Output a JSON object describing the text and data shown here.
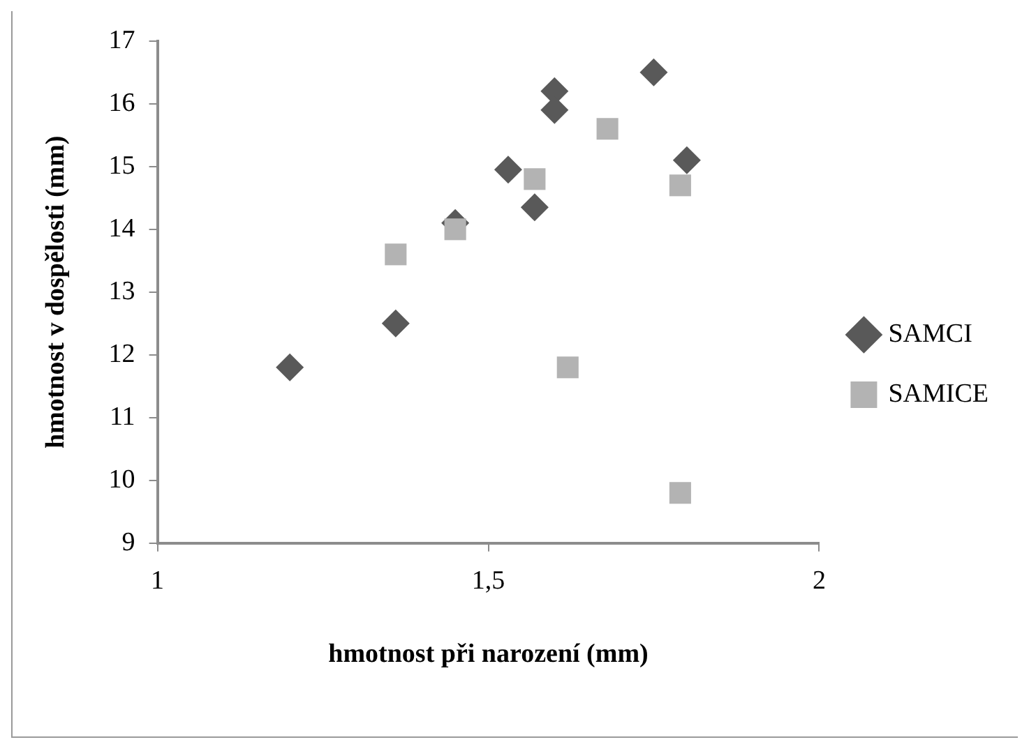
{
  "chart_data": {
    "type": "scatter",
    "xlabel": "hmotnost při narození (mm)",
    "ylabel": "hmotnost v dospělosti (mm)",
    "xlim": [
      1,
      2
    ],
    "xticks": [
      1,
      {
        "value": 1.5,
        "label": "1,5"
      },
      2
    ],
    "ylim": [
      9,
      17
    ],
    "yticks": [
      9,
      10,
      11,
      12,
      13,
      14,
      15,
      16,
      17
    ],
    "grid": false,
    "legend": "right",
    "series": [
      {
        "name": "SAMCI",
        "color": "#595959",
        "marker": "diamond",
        "x": [
          1.2,
          1.36,
          1.45,
          1.6,
          1.6,
          1.75,
          1.53,
          1.57,
          1.8
        ],
        "values": [
          11.8,
          12.5,
          14.1,
          16.2,
          15.9,
          16.5,
          14.95,
          14.35,
          15.1
        ]
      },
      {
        "name": "SAMICE",
        "color": "#b3b3b3",
        "marker": "square",
        "x": [
          1.36,
          1.45,
          1.68,
          1.57,
          1.79,
          1.62,
          1.79
        ],
        "values": [
          13.6,
          14.0,
          15.6,
          14.8,
          14.7,
          11.8,
          9.8
        ]
      }
    ]
  }
}
